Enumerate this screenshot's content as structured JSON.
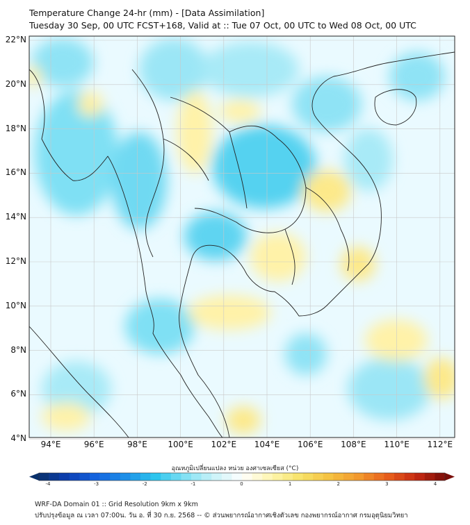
{
  "title_line1": "Temperature Change 24-hr (mm) - [Data Assimilation]",
  "title_line2": "Tuesday 30 Sep, 00 UTC FCST+168, Valid at :: Tue 07 Oct, 00 UTC to Wed 08 Oct, 00 UTC",
  "lat_labels": [
    "22°N",
    "20°N",
    "18°N",
    "16°N",
    "14°N",
    "12°N",
    "10°N",
    "8°N",
    "6°N",
    "4°N"
  ],
  "lon_labels": [
    "94°E",
    "96°E",
    "98°E",
    "100°E",
    "102°E",
    "104°E",
    "106°E",
    "108°E",
    "110°E",
    "112°E"
  ],
  "colorbar": {
    "label": "อุณหภูมิเปลี่ยนแปลง หน่วย องศาเซลเซียส (°C)",
    "ticks": [
      "-4",
      "-3",
      "-2",
      "-1",
      "0",
      "1",
      "2",
      "3",
      "4"
    ],
    "min": -4,
    "max": 4,
    "colors": [
      "#08306b",
      "#0d3fb4",
      "#1565e0",
      "#1e90e8",
      "#2bc4ee",
      "#7fe0f4",
      "#c8f2f8",
      "#ffffff",
      "#fff6b0",
      "#f7e36a",
      "#f5c242",
      "#f29a2e",
      "#e8601c",
      "#c72a12",
      "#7a0d08"
    ]
  },
  "footer_line1": "WRF-DA Domain 01 :: Grid Resolution 9km x 9km",
  "footer_line2": "ปรับปรุงข้อมูล ณ เวลา 07:00น. วัน อ. ที่ 30 ก.ย. 2568 -- © ส่วนพยากรณ์อากาศเชิงตัวเลข กองพยากรณ์อากาศ กรมอุตุนิยมวิทยา"
}
